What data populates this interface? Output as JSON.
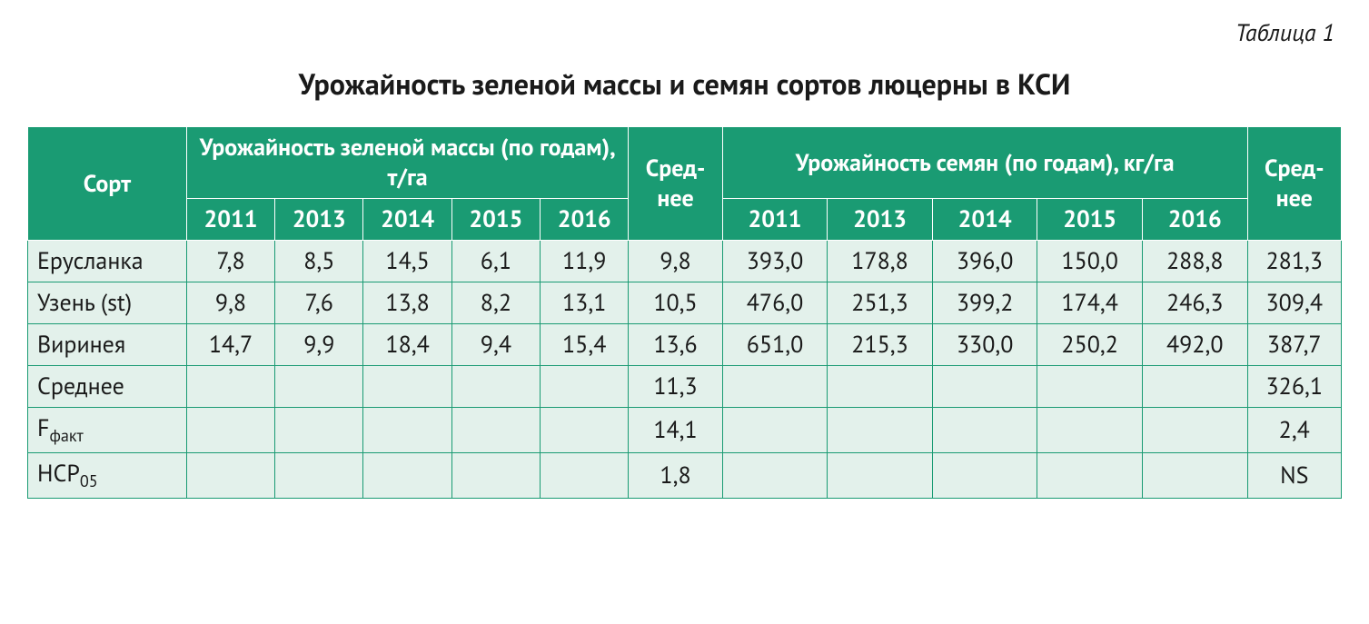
{
  "caption": "Таблица 1",
  "title": "Урожайность зеленой массы и семян сортов люцерны в КСИ",
  "header": {
    "sort": "Сорт",
    "group1": "Урожайность зеленой массы (по годам), т/га",
    "avg1": "Сред-нее",
    "group2": "Урожайность семян (по годам), кг/га",
    "avg2": "Сред-нее",
    "years1": [
      "2011",
      "2013",
      "2014",
      "2015",
      "2016"
    ],
    "years2": [
      "2011",
      "2013",
      "2014",
      "2015",
      "2016"
    ]
  },
  "rows": [
    {
      "label": "Ерусланка",
      "g1": [
        "7,8",
        "8,5",
        "14,5",
        "6,1",
        "11,9"
      ],
      "a1": "9,8",
      "g2": [
        "393,0",
        "178,8",
        "396,0",
        "150,0",
        "288,8"
      ],
      "a2": "281,3"
    },
    {
      "label": "Узень (st)",
      "g1": [
        "9,8",
        "7,6",
        "13,8",
        "8,2",
        "13,1"
      ],
      "a1": "10,5",
      "g2": [
        "476,0",
        "251,3",
        "399,2",
        "174,4",
        "246,3"
      ],
      "a2": "309,4"
    },
    {
      "label": "Виринея",
      "g1": [
        "14,7",
        "9,9",
        "18,4",
        "9,4",
        "15,4"
      ],
      "a1": "13,6",
      "g2": [
        "651,0",
        "215,3",
        "330,0",
        "250,2",
        "492,0"
      ],
      "a2": "387,7"
    },
    {
      "label": "Среднее",
      "g1": [
        "",
        "",
        "",
        "",
        ""
      ],
      "a1": "11,3",
      "g2": [
        "",
        "",
        "",
        "",
        ""
      ],
      "a2": "326,1"
    },
    {
      "label_main": "F",
      "label_sub": "факт",
      "g1": [
        "",
        "",
        "",
        "",
        ""
      ],
      "a1": "14,1",
      "g2": [
        "",
        "",
        "",
        "",
        ""
      ],
      "a2": "2,4"
    },
    {
      "label_main": "НСР",
      "label_sub": "05",
      "g1": [
        "",
        "",
        "",
        "",
        ""
      ],
      "a1": "1,8",
      "g2": [
        "",
        "",
        "",
        "",
        ""
      ],
      "a2": "NS"
    }
  ],
  "colors": {
    "header_bg": "#1a9b73",
    "header_fg": "#ffffff",
    "cell_bg": "#e3f1eb",
    "border": "#1a9b73",
    "text": "#1a1a1a",
    "page_bg": "#ffffff"
  },
  "typography": {
    "caption_fontsize_pt": 20,
    "title_fontsize_pt": 24,
    "cell_fontsize_pt": 20,
    "title_weight": 700,
    "header_weight": 700
  },
  "structure": {
    "type": "table",
    "columns": 13,
    "header_rows": 2
  }
}
